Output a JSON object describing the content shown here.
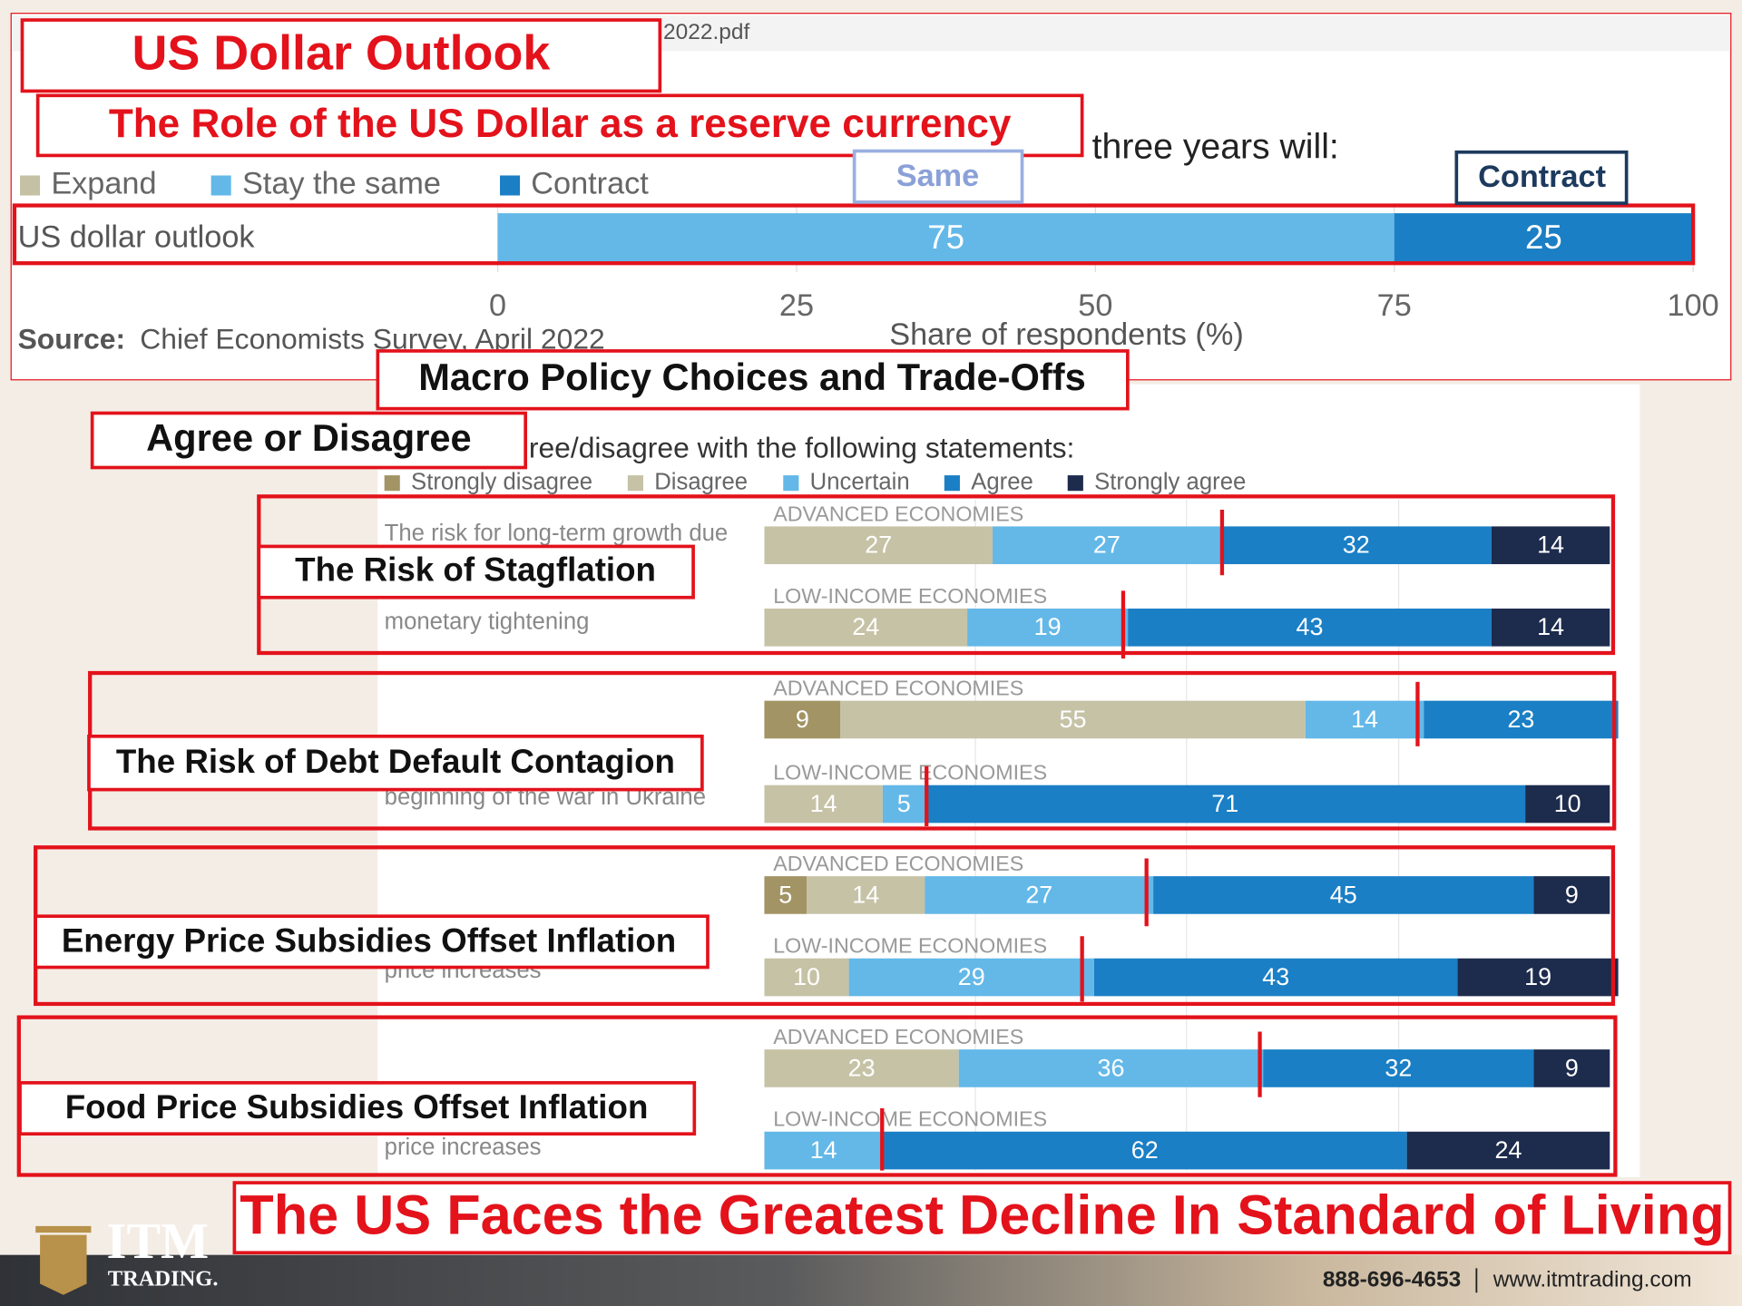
{
  "slide": {
    "title": "US Dollar Outlook",
    "subtitle": "The Role of the US Dollar as a reserve currency",
    "file_tab": "2022.pdf",
    "callouts": [
      "Same",
      "Contract"
    ],
    "section_title": "Macro Policy Choices and Trade-Offs",
    "question": "Agree or Disagree",
    "topics": [
      "The Risk of Stagflation",
      "The Risk of Debt Default Contagion",
      "Energy Price Subsidies Offset Inflation",
      "Food Price Subsidies Offset Inflation"
    ],
    "headline": "The US Faces the Greatest Decline In Standard of Living",
    "brand": "ITM",
    "brand_sub": "TRADING.",
    "phone": "888-696-4653",
    "website": "www.itmtrading.com"
  },
  "chart_data": [
    {
      "type": "bar",
      "orientation": "horizontal",
      "stacked": true,
      "title": "three years will:",
      "categories": [
        "US dollar outlook"
      ],
      "series": [
        {
          "name": "Expand",
          "color": "#c4c1a4",
          "values": [
            null
          ]
        },
        {
          "name": "Stay the same",
          "color": "#63b8e8",
          "values": [
            75
          ]
        },
        {
          "name": "Contract",
          "color": "#1a7fc5",
          "values": [
            25
          ]
        }
      ],
      "xlim": [
        0,
        100
      ],
      "xticks": [
        0,
        25,
        50,
        75,
        100
      ],
      "xlabel": "Share of respondents (%)",
      "source_label": "Source:",
      "source": "Chief Economists Survey, April 2022",
      "grid": true
    },
    {
      "type": "bar",
      "orientation": "horizontal",
      "stacked": true,
      "subtitle": "ree/disagree with the following statements:",
      "statements": [
        "The risk for long-term growth due",
        "monetary tightening",
        "beginning of the war in Ukraine",
        "price increases",
        "price increases"
      ],
      "categories": [
        "ADVANCED ECONOMIES",
        "LOW-INCOME ECONOMIES",
        "ADVANCED ECONOMIES",
        "LOW-INCOME ECONOMIES",
        "ADVANCED ECONOMIES",
        "LOW-INCOME ECONOMIES",
        "ADVANCED ECONOMIES",
        "LOW-INCOME ECONOMIES"
      ],
      "series": [
        {
          "name": "Strongly disagree",
          "color": "#a39465",
          "values": [
            null,
            null,
            9,
            null,
            5,
            null,
            null,
            null
          ]
        },
        {
          "name": "Disagree",
          "color": "#c6c2a6",
          "values": [
            27,
            24,
            55,
            14,
            14,
            10,
            23,
            null
          ]
        },
        {
          "name": "Uncertain",
          "color": "#63b8e8",
          "values": [
            27,
            19,
            14,
            5,
            27,
            29,
            36,
            14
          ]
        },
        {
          "name": "Agree",
          "color": "#1a7fc5",
          "values": [
            32,
            43,
            23,
            71,
            45,
            43,
            32,
            62
          ]
        },
        {
          "name": "Strongly agree",
          "color": "#1d2b4d",
          "values": [
            14,
            14,
            null,
            10,
            9,
            19,
            9,
            24
          ]
        }
      ],
      "xlim": [
        0,
        100
      ],
      "grid": true
    }
  ]
}
